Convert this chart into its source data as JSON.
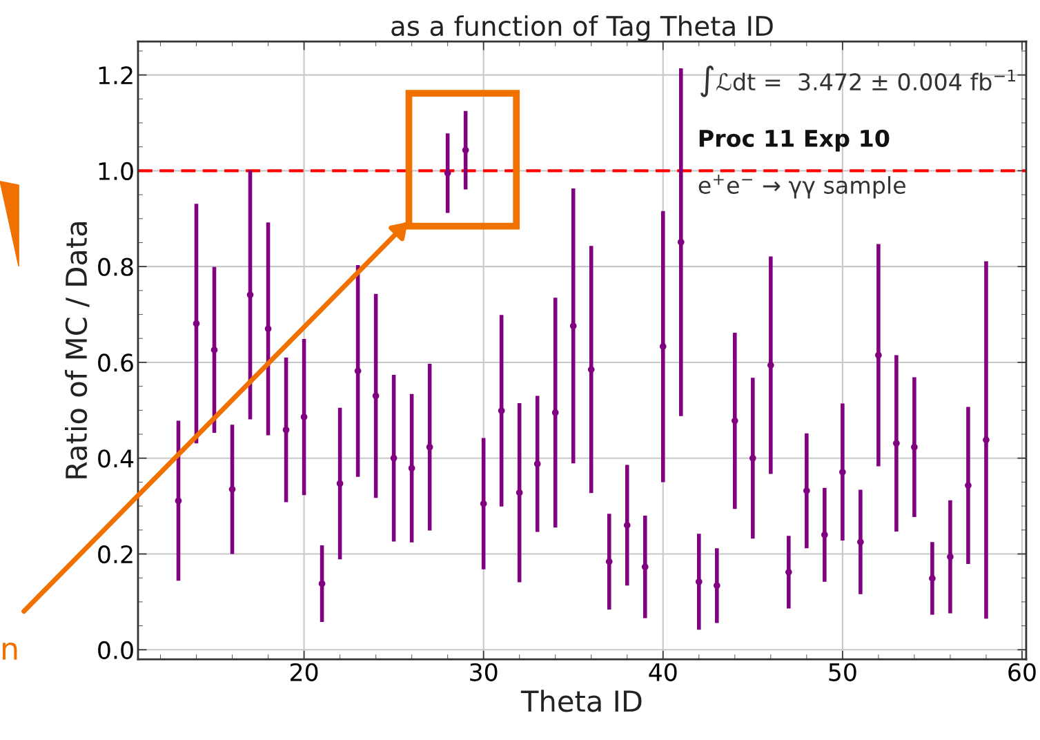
{
  "chart_data": {
    "type": "scatter",
    "title": "as a function of Tag Theta ID",
    "xlabel": "Theta ID",
    "ylabel": "Ratio of MC / Data",
    "x": [
      13,
      14,
      15,
      16,
      17,
      18,
      19,
      20,
      21,
      22,
      23,
      24,
      25,
      26,
      27,
      28,
      29,
      30,
      31,
      32,
      33,
      34,
      35,
      36,
      37,
      38,
      39,
      40,
      41,
      42,
      43,
      44,
      45,
      46,
      47,
      48,
      49,
      50,
      51,
      52,
      53,
      54,
      55,
      56,
      57,
      58
    ],
    "series": [
      {
        "color": "#800080",
        "values": [
          0.311,
          0.681,
          0.626,
          0.335,
          0.741,
          0.67,
          0.459,
          0.486,
          0.138,
          0.347,
          0.582,
          0.53,
          0.4,
          0.379,
          0.423,
          0.995,
          1.043,
          0.305,
          0.499,
          0.328,
          0.388,
          0.495,
          0.676,
          0.585,
          0.184,
          0.26,
          0.173,
          0.633,
          0.851,
          0.142,
          0.134,
          0.478,
          0.4,
          0.594,
          0.162,
          0.332,
          0.24,
          0.371,
          0.225,
          0.615,
          0.431,
          0.423,
          0.149,
          0.194,
          0.343,
          0.438
        ],
        "errors": [
          0.167,
          0.25,
          0.173,
          0.135,
          0.26,
          0.222,
          0.151,
          0.163,
          0.08,
          0.158,
          0.221,
          0.213,
          0.174,
          0.155,
          0.174,
          0.083,
          0.082,
          0.137,
          0.2,
          0.187,
          0.142,
          0.24,
          0.287,
          0.258,
          0.1,
          0.126,
          0.107,
          0.283,
          0.363,
          0.1,
          0.078,
          0.184,
          0.168,
          0.227,
          0.076,
          0.12,
          0.098,
          0.143,
          0.109,
          0.232,
          0.184,
          0.146,
          0.076,
          0.118,
          0.164,
          0.373
        ]
      }
    ],
    "xlim": [
      10.75,
      60.23
    ],
    "ylim": [
      -0.02,
      1.27
    ],
    "xticks": [
      20,
      30,
      40,
      50,
      60
    ],
    "yticks": [
      {
        "value": 0.0,
        "label": "0.0"
      },
      0.2,
      0.4,
      0.6,
      0.8,
      {
        "value": 1.0,
        "label": "1.0"
      },
      1.2
    ],
    "grid": true,
    "marker": "circle",
    "ref_lines": [
      {
        "axis": "y",
        "value": 1.0,
        "color": "#ff0000",
        "line_style": "dashed"
      }
    ],
    "annotations": [
      "∫ℒdt =  3.472 ± 0.004 fb$^{−1}$",
      "Proc 11 Exp 10",
      "e$^{+}$e$^{−}$ → γγ sample",
      "n"
    ]
  }
}
